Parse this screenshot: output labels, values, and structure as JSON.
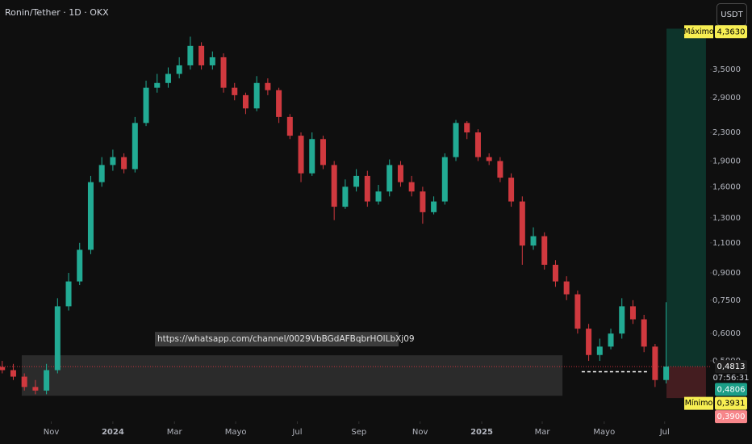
{
  "header": {
    "symbol": "Ronin/Tether · 1D · OKX",
    "currency_button": "USDT"
  },
  "chart_data": {
    "type": "candlestick",
    "log_scale": true,
    "grid": false,
    "up_color": "#22ab94",
    "down_color": "#d0393f",
    "x": [
      2023.7,
      2023.73,
      2023.76,
      2023.79,
      2023.82,
      2023.85,
      2023.88,
      2023.91,
      2023.94,
      2023.97,
      2024.0,
      2024.03,
      2024.06,
      2024.09,
      2024.12,
      2024.15,
      2024.18,
      2024.21,
      2024.24,
      2024.27,
      2024.3,
      2024.33,
      2024.36,
      2024.39,
      2024.42,
      2024.45,
      2024.48,
      2024.51,
      2024.54,
      2024.57,
      2024.6,
      2024.63,
      2024.66,
      2024.69,
      2024.72,
      2024.75,
      2024.78,
      2024.81,
      2024.84,
      2024.87,
      2024.9,
      2024.93,
      2024.96,
      2024.99,
      2025.02,
      2025.05,
      2025.08,
      2025.11,
      2025.14,
      2025.17,
      2025.2,
      2025.23,
      2025.26,
      2025.29,
      2025.32,
      2025.35,
      2025.38,
      2025.41,
      2025.44,
      2025.47,
      2025.5
    ],
    "open": [
      0.48,
      0.47,
      0.45,
      0.42,
      0.41,
      0.47,
      0.72,
      0.85,
      1.05,
      1.65,
      1.85,
      1.95,
      1.8,
      2.45,
      3.1,
      3.2,
      3.4,
      3.6,
      4.1,
      3.6,
      3.8,
      3.1,
      2.95,
      2.7,
      3.2,
      3.05,
      2.55,
      2.25,
      1.75,
      2.2,
      1.85,
      1.4,
      1.6,
      1.72,
      1.45,
      1.55,
      1.85,
      1.65,
      1.55,
      1.35,
      1.45,
      1.95,
      2.45,
      2.3,
      1.95,
      1.9,
      1.7,
      1.45,
      1.08,
      1.15,
      0.95,
      0.85,
      0.78,
      0.62,
      0.52,
      0.55,
      0.6,
      0.72,
      0.66,
      0.55,
      0.44
    ],
    "high": [
      0.5,
      0.49,
      0.46,
      0.44,
      0.49,
      0.76,
      0.9,
      1.1,
      1.72,
      1.95,
      2.05,
      2.0,
      2.55,
      3.25,
      3.4,
      3.55,
      3.8,
      4.36,
      4.2,
      3.95,
      3.9,
      3.2,
      3.0,
      3.35,
      3.3,
      3.1,
      2.6,
      2.3,
      2.3,
      2.25,
      1.9,
      1.68,
      1.8,
      1.78,
      1.62,
      1.92,
      1.9,
      1.72,
      1.6,
      1.5,
      2.0,
      2.5,
      2.48,
      2.35,
      2.0,
      1.95,
      1.75,
      1.5,
      1.22,
      1.18,
      0.98,
      0.88,
      0.8,
      0.64,
      0.58,
      0.62,
      0.76,
      0.75,
      0.68,
      0.56,
      0.74
    ],
    "low": [
      0.46,
      0.44,
      0.41,
      0.4,
      0.4,
      0.46,
      0.7,
      0.83,
      1.02,
      1.6,
      1.78,
      1.75,
      1.76,
      2.4,
      3.0,
      3.1,
      3.3,
      3.5,
      3.5,
      3.5,
      3.0,
      2.85,
      2.6,
      2.65,
      2.95,
      2.45,
      2.2,
      1.65,
      1.72,
      1.8,
      1.28,
      1.38,
      1.55,
      1.4,
      1.42,
      1.5,
      1.6,
      1.5,
      1.25,
      1.33,
      1.42,
      1.9,
      2.2,
      1.9,
      1.85,
      1.65,
      1.4,
      0.95,
      1.05,
      0.92,
      0.82,
      0.75,
      0.6,
      0.5,
      0.5,
      0.54,
      0.58,
      0.64,
      0.53,
      0.42,
      0.43
    ],
    "close": [
      0.47,
      0.45,
      0.42,
      0.41,
      0.47,
      0.72,
      0.85,
      1.05,
      1.65,
      1.85,
      1.95,
      1.8,
      2.45,
      3.1,
      3.2,
      3.4,
      3.6,
      4.1,
      3.6,
      3.8,
      3.1,
      2.95,
      2.7,
      3.2,
      3.05,
      2.55,
      2.25,
      1.75,
      2.2,
      1.85,
      1.4,
      1.6,
      1.72,
      1.45,
      1.55,
      1.85,
      1.65,
      1.55,
      1.35,
      1.45,
      1.95,
      2.45,
      2.3,
      1.95,
      1.9,
      1.7,
      1.45,
      1.08,
      1.15,
      0.95,
      0.85,
      0.78,
      0.62,
      0.52,
      0.55,
      0.6,
      0.72,
      0.66,
      0.55,
      0.44,
      0.4813
    ],
    "xlim": [
      2023.694,
      2025.619
    ],
    "ylim": [
      0.341,
      5.57
    ],
    "xticks": [
      {
        "value": 2023.833,
        "label": "Nov"
      },
      2024,
      {
        "value": 2024.167,
        "label": "Mar"
      },
      {
        "value": 2024.333,
        "label": "Mayo"
      },
      {
        "value": 2024.5,
        "label": "Jul"
      },
      {
        "value": 2024.667,
        "label": "Sep"
      },
      {
        "value": 2024.833,
        "label": "Nov"
      },
      2025,
      {
        "value": 2025.164,
        "label": "Mar"
      },
      {
        "value": 2025.332,
        "label": "Mayo"
      },
      {
        "value": 2025.496,
        "label": "Jul"
      }
    ],
    "yticks": [
      {
        "value": 0.5,
        "label": "0,5000"
      },
      {
        "value": 0.6,
        "label": "0,6000"
      },
      {
        "value": 0.75,
        "label": "0,7500"
      },
      {
        "value": 0.9,
        "label": "0,9000"
      },
      {
        "value": 1.1,
        "label": "1,1000"
      },
      {
        "value": 1.3,
        "label": "1,3000"
      },
      {
        "value": 1.6,
        "label": "1,6000"
      },
      {
        "value": 1.9,
        "label": "1,9000"
      },
      {
        "value": 2.3,
        "label": "2,3000"
      },
      {
        "value": 2.9,
        "label": "2,9000"
      },
      {
        "value": 3.5,
        "label": "3,5000"
      }
    ],
    "zone": {
      "x": [
        2023.753,
        2025.219
      ],
      "y": [
        0.396,
        0.519
      ]
    },
    "level_line": {
      "x": [
        2025.271,
        2025.453
      ],
      "value": 0.465
    },
    "annotation": {
      "text": "https://whatsapp.com/channel/0029VbBGdAFBqbrHOlLbXj09",
      "x": 2024.114,
      "value": 0.578
    },
    "position": {
      "x": [
        2025.501,
        2025.608
      ],
      "target": 4.6,
      "entry": {
        "value": 0.4806,
        "label": "0,4806"
      },
      "stop": {
        "value": 0.39,
        "label": "0,3900"
      }
    },
    "price_line": {
      "value": 0.4813,
      "label": "0,4813",
      "countdown": "07:56:31",
      "color": "#f23645"
    },
    "extremes": [
      {
        "name": "Máximo",
        "value": 4.363,
        "label": "4,3630"
      },
      {
        "name": "Mínimo",
        "value": 0.3931,
        "label": "0,3931"
      }
    ]
  }
}
